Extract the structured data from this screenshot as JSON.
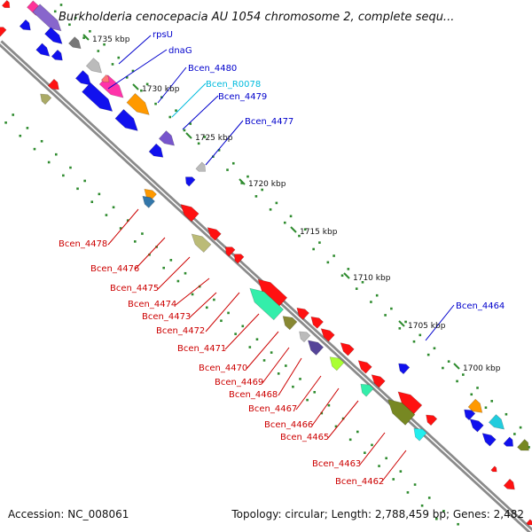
{
  "title": "Burkholderia cenocepacia AU 1054 chromosome 2, complete sequ...",
  "footer": {
    "accession": "Accession: NC_008061",
    "topology": "Topology: circular; Length: 2,788,459 bp; Genes: 2,482"
  },
  "colors": {
    "backbone": "#8a8a8a",
    "tick_dots": "#2e8b2e",
    "label_forward": "#0000cc",
    "label_reverse": "#cc0000",
    "label_rna": "#00bbdd"
  },
  "ticks": [
    "1735 kbp",
    "1730 kbp",
    "1725 kbp",
    "1720 kbp",
    "1715 kbp",
    "1710 kbp",
    "1705 kbp",
    "1700 kbp"
  ],
  "labels_forward": [
    {
      "name": "rpsU",
      "color": "#0000cc"
    },
    {
      "name": "dnaG",
      "color": "#0000cc"
    },
    {
      "name": "Bcen_4480",
      "color": "#0000cc"
    },
    {
      "name": "Bcen_R0078",
      "color": "#00bbdd"
    },
    {
      "name": "Bcen_4479",
      "color": "#0000cc"
    },
    {
      "name": "Bcen_4477",
      "color": "#0000cc"
    },
    {
      "name": "Bcen_4464",
      "color": "#0000cc"
    }
  ],
  "labels_reverse": [
    "Bcen_4478",
    "Bcen_4476",
    "Bcen_4475",
    "Bcen_4474",
    "Bcen_4473",
    "Bcen_4472",
    "Bcen_4471",
    "Bcen_4470",
    "Bcen_4469",
    "Bcen_4468",
    "Bcen_4467",
    "Bcen_4466",
    "Bcen_4465",
    "Bcen_4463",
    "Bcen_4462"
  ]
}
